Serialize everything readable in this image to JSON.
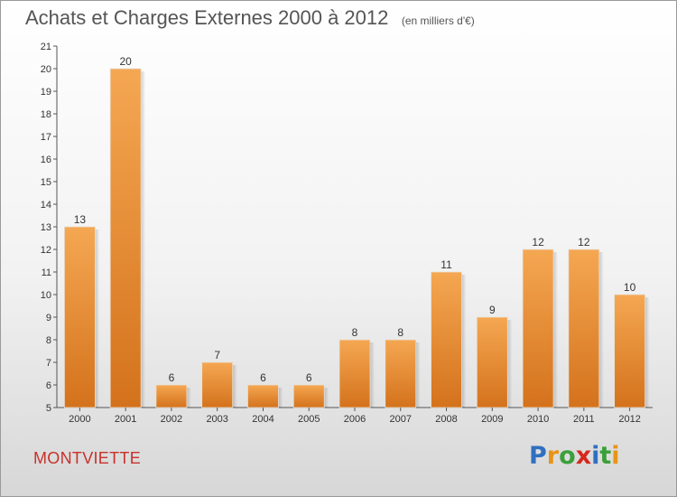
{
  "chart_data": {
    "type": "bar",
    "title": "Achats et Charges Externes 2000 à 2012",
    "unit_note": "(en milliers d'€)",
    "categories": [
      "2000",
      "2001",
      "2002",
      "2003",
      "2004",
      "2005",
      "2006",
      "2007",
      "2008",
      "2009",
      "2010",
      "2011",
      "2012"
    ],
    "values": [
      13,
      20,
      6,
      7,
      6,
      6,
      8,
      8,
      11,
      9,
      12,
      12,
      10
    ],
    "ylim": [
      5,
      21
    ],
    "yticks": [
      5,
      6,
      7,
      8,
      9,
      10,
      11,
      12,
      13,
      14,
      15,
      16,
      17,
      18,
      19,
      20,
      21
    ],
    "xlabel": "",
    "ylabel": "",
    "grid": false,
    "bar_color_top": "#f5a752",
    "bar_color_bottom": "#d4721c"
  },
  "footer": {
    "place": "MONTVIETTE",
    "logo_text": "Proxiti",
    "logo_colors": [
      "#2f6fc0",
      "#e89416",
      "#3aa03a",
      "#d6281e",
      "#2f6fc0",
      "#3aa03a",
      "#e89416"
    ]
  }
}
